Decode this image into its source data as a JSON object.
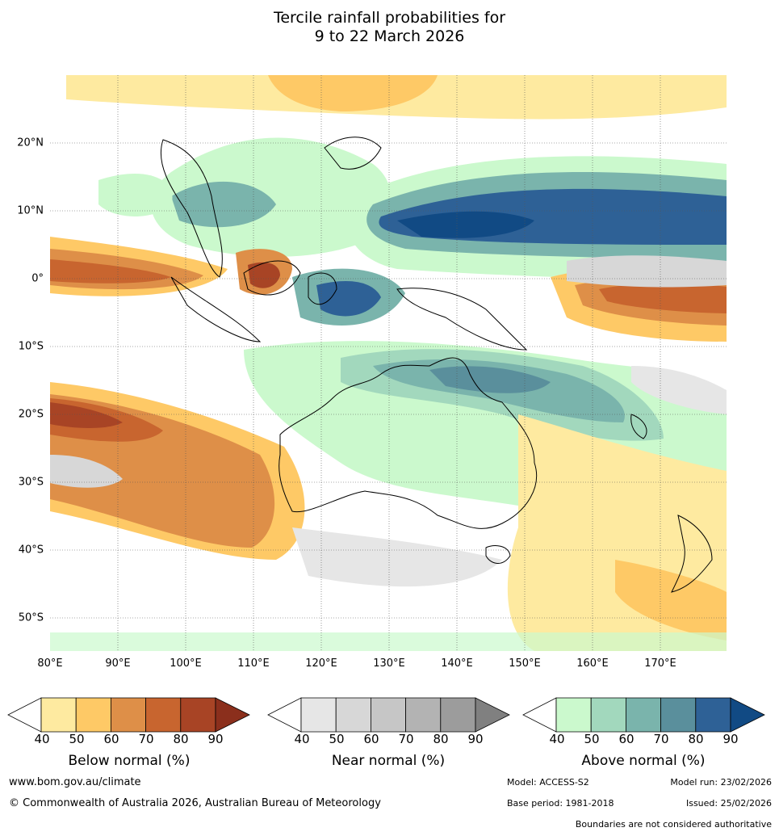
{
  "title": {
    "line1": "Tercile rainfall probabilities for",
    "line2": "9 to 22 March 2026"
  },
  "map": {
    "lat_labels": [
      "20°N",
      "10°N",
      "0°",
      "10°S",
      "20°S",
      "30°S",
      "40°S",
      "50°S"
    ],
    "lon_labels": [
      "80°E",
      "90°E",
      "100°E",
      "110°E",
      "120°E",
      "130°E",
      "140°E",
      "150°E",
      "160°E",
      "170°E"
    ],
    "lat_range": [
      -55,
      30
    ],
    "lon_range": [
      80,
      180
    ]
  },
  "legends": {
    "below": {
      "title": "Below normal (%)",
      "ticks": [
        "40",
        "50",
        "60",
        "70",
        "80",
        "90"
      ],
      "colors": [
        "#ffffff",
        "#feeaa0",
        "#fec966",
        "#de8f48",
        "#c8652f",
        "#a84425",
        "#8b2f1c"
      ]
    },
    "near": {
      "title": "Near normal (%)",
      "ticks": [
        "40",
        "50",
        "60",
        "70",
        "80",
        "90"
      ],
      "colors": [
        "#ffffff",
        "#e6e6e6",
        "#d7d7d7",
        "#c6c6c6",
        "#b3b3b3",
        "#9c9c9c",
        "#808080"
      ]
    },
    "above": {
      "title": "Above normal (%)",
      "ticks": [
        "40",
        "50",
        "60",
        "70",
        "80",
        "90"
      ],
      "colors": [
        "#ffffff",
        "#cbf9cd",
        "#a2d8bd",
        "#7ab4ac",
        "#5a8f9c",
        "#2e6196",
        "#114a84"
      ]
    }
  },
  "footer": {
    "url": "www.bom.gov.au/climate",
    "copyright": "© Commonwealth of Australia 2026, Australian Bureau of Meteorology",
    "model": "Model: ACCESS-S2",
    "model_run": "Model run: 23/02/2026",
    "base_period": "Base period: 1981-2018",
    "issued": "Issued: 25/02/2026",
    "disclaimer": "Boundaries are not considered authoritative"
  }
}
